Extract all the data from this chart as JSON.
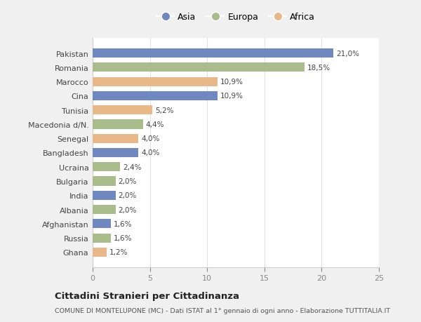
{
  "countries": [
    "Pakistan",
    "Romania",
    "Marocco",
    "Cina",
    "Tunisia",
    "Macedonia d/N.",
    "Senegal",
    "Bangladesh",
    "Ucraina",
    "Bulgaria",
    "India",
    "Albania",
    "Afghanistan",
    "Russia",
    "Ghana"
  ],
  "values": [
    21.0,
    18.5,
    10.9,
    10.9,
    5.2,
    4.4,
    4.0,
    4.0,
    2.4,
    2.0,
    2.0,
    2.0,
    1.6,
    1.6,
    1.2
  ],
  "labels": [
    "21,0%",
    "18,5%",
    "10,9%",
    "10,9%",
    "5,2%",
    "4,4%",
    "4,0%",
    "4,0%",
    "2,4%",
    "2,0%",
    "2,0%",
    "2,0%",
    "1,6%",
    "1,6%",
    "1,2%"
  ],
  "continents": [
    "Asia",
    "Europa",
    "Africa",
    "Asia",
    "Africa",
    "Europa",
    "Africa",
    "Asia",
    "Europa",
    "Europa",
    "Asia",
    "Europa",
    "Asia",
    "Europa",
    "Africa"
  ],
  "colors": {
    "Asia": "#7088c0",
    "Europa": "#a8bc8c",
    "Africa": "#e8b888"
  },
  "xlim": [
    0,
    25
  ],
  "xticks": [
    0,
    5,
    10,
    15,
    20,
    25
  ],
  "title": "Cittadini Stranieri per Cittadinanza",
  "subtitle": "COMUNE DI MONTELUPONE (MC) - Dati ISTAT al 1° gennaio di ogni anno - Elaborazione TUTTITALIA.IT",
  "figure_bg": "#f0f0f0",
  "plot_bg": "#ffffff",
  "grid_color": "#e0e0e0"
}
